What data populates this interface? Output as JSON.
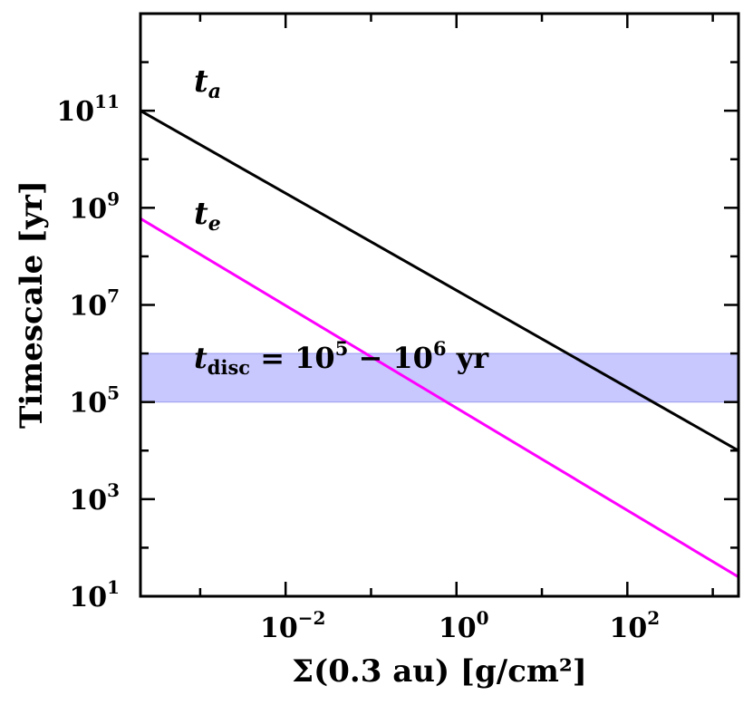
{
  "chart_data": {
    "type": "line",
    "xlabel": "Σ(0.3 au) [g/cm²]",
    "ylabel": "Timescale [yr]",
    "x_scale": "log",
    "y_scale": "log",
    "xlim": [
      0.0002,
      2000
    ],
    "ylim": [
      10,
      10000000000000
    ],
    "x_major_ticks": [
      {
        "value": 0.01,
        "base": "10",
        "exp": "−2"
      },
      {
        "value": 1,
        "base": "10",
        "exp": "0"
      },
      {
        "value": 100,
        "base": "10",
        "exp": "2"
      }
    ],
    "y_major_ticks": [
      {
        "value": 10,
        "base": "10",
        "exp": "1"
      },
      {
        "value": 1000,
        "base": "10",
        "exp": "3"
      },
      {
        "value": 100000,
        "base": "10",
        "exp": "5"
      },
      {
        "value": 10000000,
        "base": "10",
        "exp": "7"
      },
      {
        "value": 1000000000,
        "base": "10",
        "exp": "9"
      },
      {
        "value": 100000000000,
        "base": "10",
        "exp": "11"
      }
    ],
    "x_minor_ticks": [
      0.001,
      0.1,
      10,
      1000
    ],
    "y_minor_ticks": [
      100,
      10000,
      1000000,
      100000000,
      10000000000,
      1000000000000
    ],
    "series": [
      {
        "name": "t",
        "subscript": "a",
        "color": "#000000",
        "x": [
          0.0002,
          2000
        ],
        "y": [
          100000000000,
          10000
        ]
      },
      {
        "name": "t",
        "subscript": "e",
        "color": "#ff00ff",
        "x": [
          0.0002,
          2000
        ],
        "y": [
          600000000,
          25
        ]
      }
    ],
    "band": {
      "y_range": [
        100000,
        1000000
      ],
      "color": "#c8c8ff",
      "edge_color": "#9a9af0",
      "label": {
        "t": "t",
        "sub": "disc",
        "eq": " = 10",
        "exp1": "5",
        "mid": " − 10",
        "exp2": "6",
        "unit": " yr"
      }
    },
    "grid": false,
    "legend": "none"
  }
}
